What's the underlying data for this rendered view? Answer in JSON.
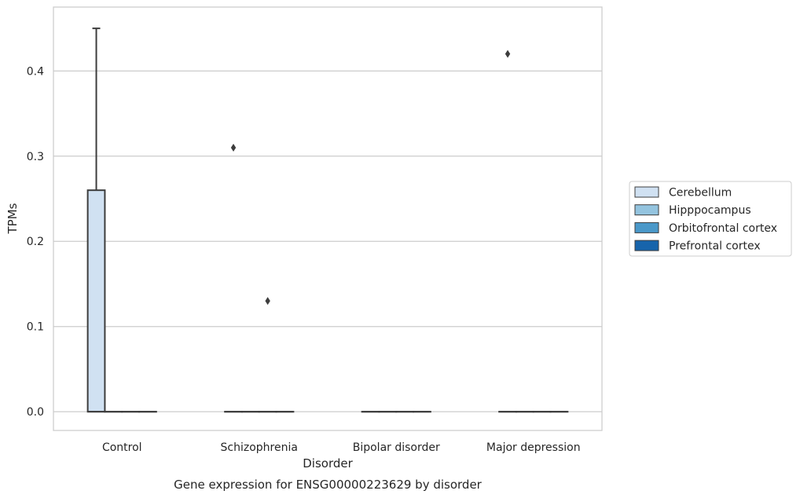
{
  "chart_data": {
    "type": "box",
    "caption": "Gene expression for ENSG00000223629 by disorder",
    "xlabel": "Disorder",
    "ylabel": "TPMs",
    "ylim": [
      -0.022,
      0.475
    ],
    "yticks": [
      0.0,
      0.1,
      0.2,
      0.3,
      0.4
    ],
    "ytick_labels": [
      "0.0",
      "0.1",
      "0.2",
      "0.3",
      "0.4"
    ],
    "grid": "horizontal",
    "categories": [
      "Control",
      "Schizophrenia",
      "Bipolar disorder",
      "Major depression"
    ],
    "series": [
      {
        "name": "Cerebellum",
        "color": "#d0e1f2",
        "boxes": [
          {
            "q1": 0,
            "median": 0,
            "q3": 0.26,
            "whisker_low": 0,
            "whisker_high": 0.45,
            "outliers": []
          },
          {
            "q1": 0,
            "median": 0,
            "q3": 0,
            "whisker_low": 0,
            "whisker_high": 0,
            "outliers": [
              0.31
            ]
          },
          {
            "q1": 0,
            "median": 0,
            "q3": 0,
            "whisker_low": 0,
            "whisker_high": 0,
            "outliers": []
          },
          {
            "q1": 0,
            "median": 0,
            "q3": 0,
            "whisker_low": 0,
            "whisker_high": 0,
            "outliers": [
              0.42
            ]
          }
        ]
      },
      {
        "name": "Hipppocampus",
        "color": "#94c4df",
        "boxes": [
          {
            "q1": 0,
            "median": 0,
            "q3": 0,
            "whisker_low": 0,
            "whisker_high": 0,
            "outliers": []
          },
          {
            "q1": 0,
            "median": 0,
            "q3": 0,
            "whisker_low": 0,
            "whisker_high": 0,
            "outliers": []
          },
          {
            "q1": 0,
            "median": 0,
            "q3": 0,
            "whisker_low": 0,
            "whisker_high": 0,
            "outliers": []
          },
          {
            "q1": 0,
            "median": 0,
            "q3": 0,
            "whisker_low": 0,
            "whisker_high": 0,
            "outliers": []
          }
        ]
      },
      {
        "name": "Orbitofrontal cortex",
        "color": "#4a98c9",
        "boxes": [
          {
            "q1": 0,
            "median": 0,
            "q3": 0,
            "whisker_low": 0,
            "whisker_high": 0,
            "outliers": []
          },
          {
            "q1": 0,
            "median": 0,
            "q3": 0,
            "whisker_low": 0,
            "whisker_high": 0,
            "outliers": [
              0.13
            ]
          },
          {
            "q1": 0,
            "median": 0,
            "q3": 0,
            "whisker_low": 0,
            "whisker_high": 0,
            "outliers": []
          },
          {
            "q1": 0,
            "median": 0,
            "q3": 0,
            "whisker_low": 0,
            "whisker_high": 0,
            "outliers": []
          }
        ]
      },
      {
        "name": "Prefrontal cortex",
        "color": "#1764ab",
        "boxes": [
          {
            "q1": 0,
            "median": 0,
            "q3": 0,
            "whisker_low": 0,
            "whisker_high": 0,
            "outliers": []
          },
          {
            "q1": 0,
            "median": 0,
            "q3": 0,
            "whisker_low": 0,
            "whisker_high": 0,
            "outliers": []
          },
          {
            "q1": 0,
            "median": 0,
            "q3": 0,
            "whisker_low": 0,
            "whisker_high": 0,
            "outliers": []
          },
          {
            "q1": 0,
            "median": 0,
            "q3": 0,
            "whisker_low": 0,
            "whisker_high": 0,
            "outliers": []
          }
        ]
      }
    ],
    "legend_position": "right"
  }
}
